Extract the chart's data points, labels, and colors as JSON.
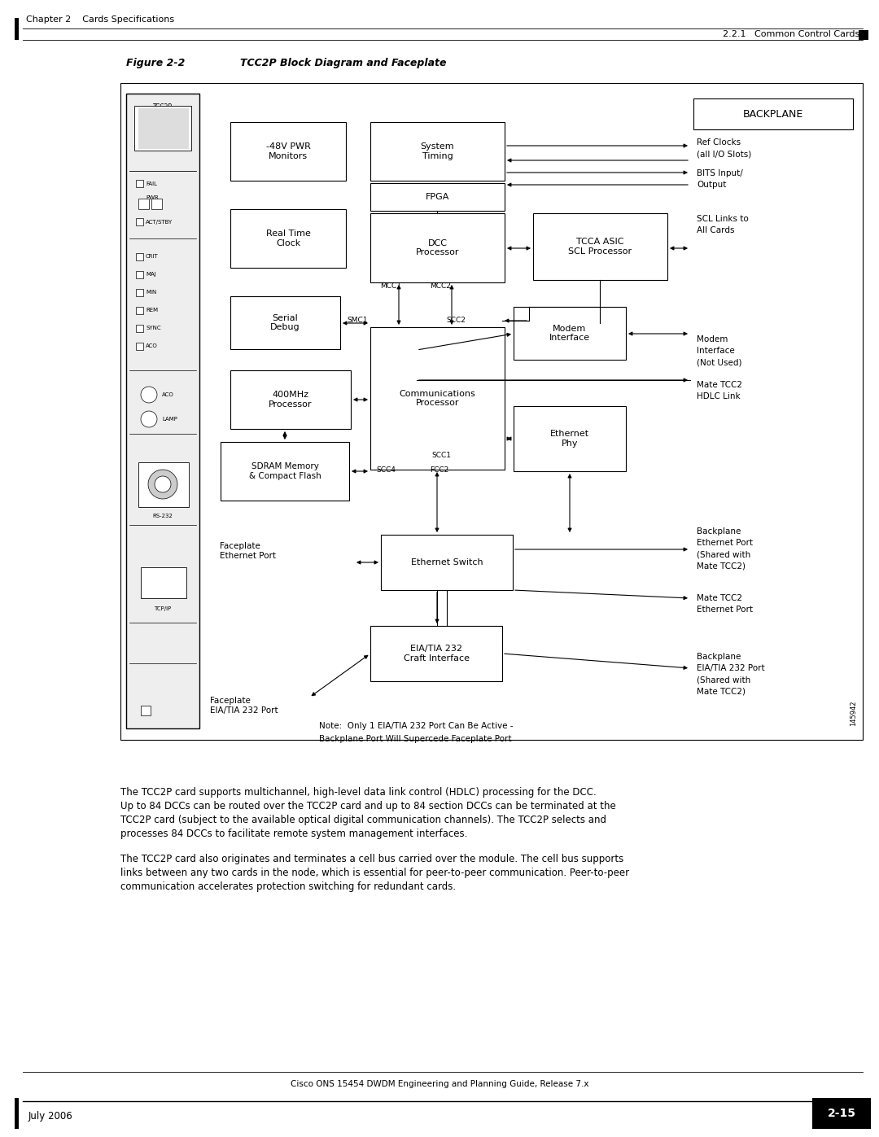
{
  "title_fig": "Figure 2-2",
  "title_main": "TCC2P Block Diagram and Faceplate",
  "header_left": "Chapter 2    Cards Specifications",
  "header_right": "2.2.1   Common Control Cards",
  "footer_left": "July 2006",
  "footer_center": "Cisco ONS 15454 DWDM Engineering and Planning Guide, Release 7.x",
  "footer_right": "2-15",
  "bg_color": "#ffffff",
  "line_color": "#000000",
  "backplane_label": "BACKPLANE",
  "note_text": "Note:  Only 1 EIA/TIA 232 Port Can Be Active -\nBackplane Port Will Supercede Faceplate Port",
  "figure_num": "145942",
  "para1": "The TCC2P card supports multichannel, high-level data link control (HDLC) processing for the DCC.\nUp to 84 DCCs can be routed over the TCC2P card and up to 84 section DCCs can be terminated at the\nTCC2P card (subject to the available optical digital communication channels). The TCC2P selects and\nprocesses 84 DCCs to facilitate remote system management interfaces.",
  "para2": "The TCC2P card also originates and terminates a cell bus carried over the module. The cell bus supports\nlinks between any two cards in the node, which is essential for peer-to-peer communication. Peer-to-peer\ncommunication accelerates protection switching for redundant cards."
}
